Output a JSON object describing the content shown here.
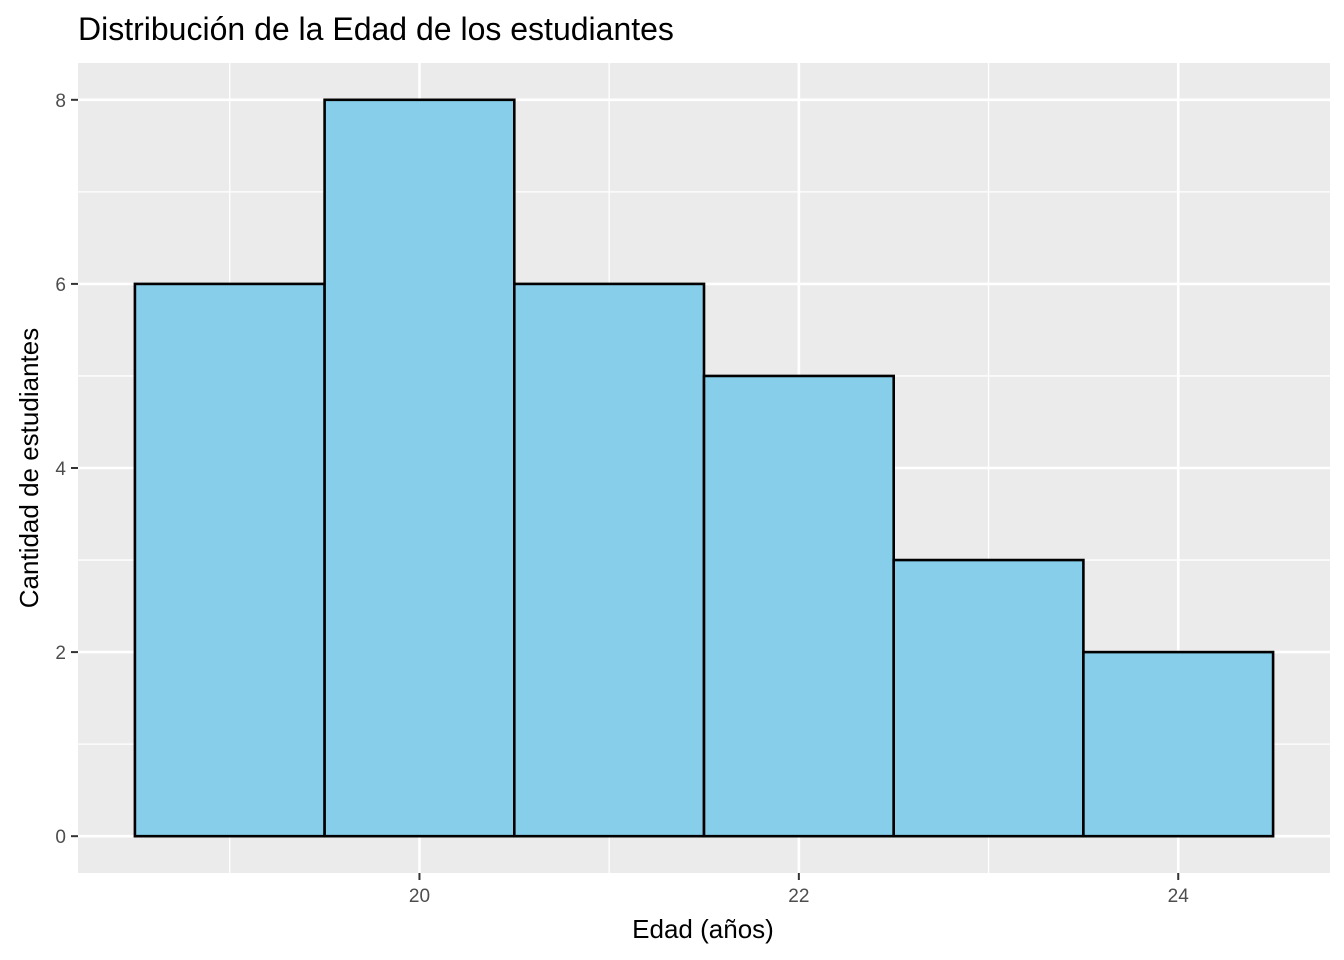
{
  "chart_data": {
    "type": "bar",
    "title": "Distribución de la Edad de los estudiantes",
    "xlabel": "Edad (años)",
    "ylabel": "Cantidad de estudiantes",
    "bins": [
      {
        "x_start": 18.5,
        "x_end": 19.5,
        "count": 6
      },
      {
        "x_start": 19.5,
        "x_end": 20.5,
        "count": 8
      },
      {
        "x_start": 20.5,
        "x_end": 21.5,
        "count": 6
      },
      {
        "x_start": 21.5,
        "x_end": 22.5,
        "count": 5
      },
      {
        "x_start": 22.5,
        "x_end": 23.5,
        "count": 3
      },
      {
        "x_start": 23.5,
        "x_end": 24.5,
        "count": 2
      }
    ],
    "xlim": [
      18.2,
      24.8
    ],
    "ylim": [
      -0.4,
      8.4
    ],
    "x_ticks": [
      20,
      22,
      24
    ],
    "x_tick_labels": [
      "20",
      "22",
      "24"
    ],
    "y_ticks": [
      0,
      2,
      4,
      6,
      8
    ],
    "y_tick_labels": [
      "0",
      "2",
      "4",
      "6",
      "8"
    ],
    "grid": true,
    "legend": false,
    "colors": {
      "bar_fill": "#87CEEB",
      "bar_stroke": "#000000",
      "panel_background": "#EBEBEB",
      "grid_line": "#FFFFFF",
      "tick_mark": "#333333"
    }
  }
}
